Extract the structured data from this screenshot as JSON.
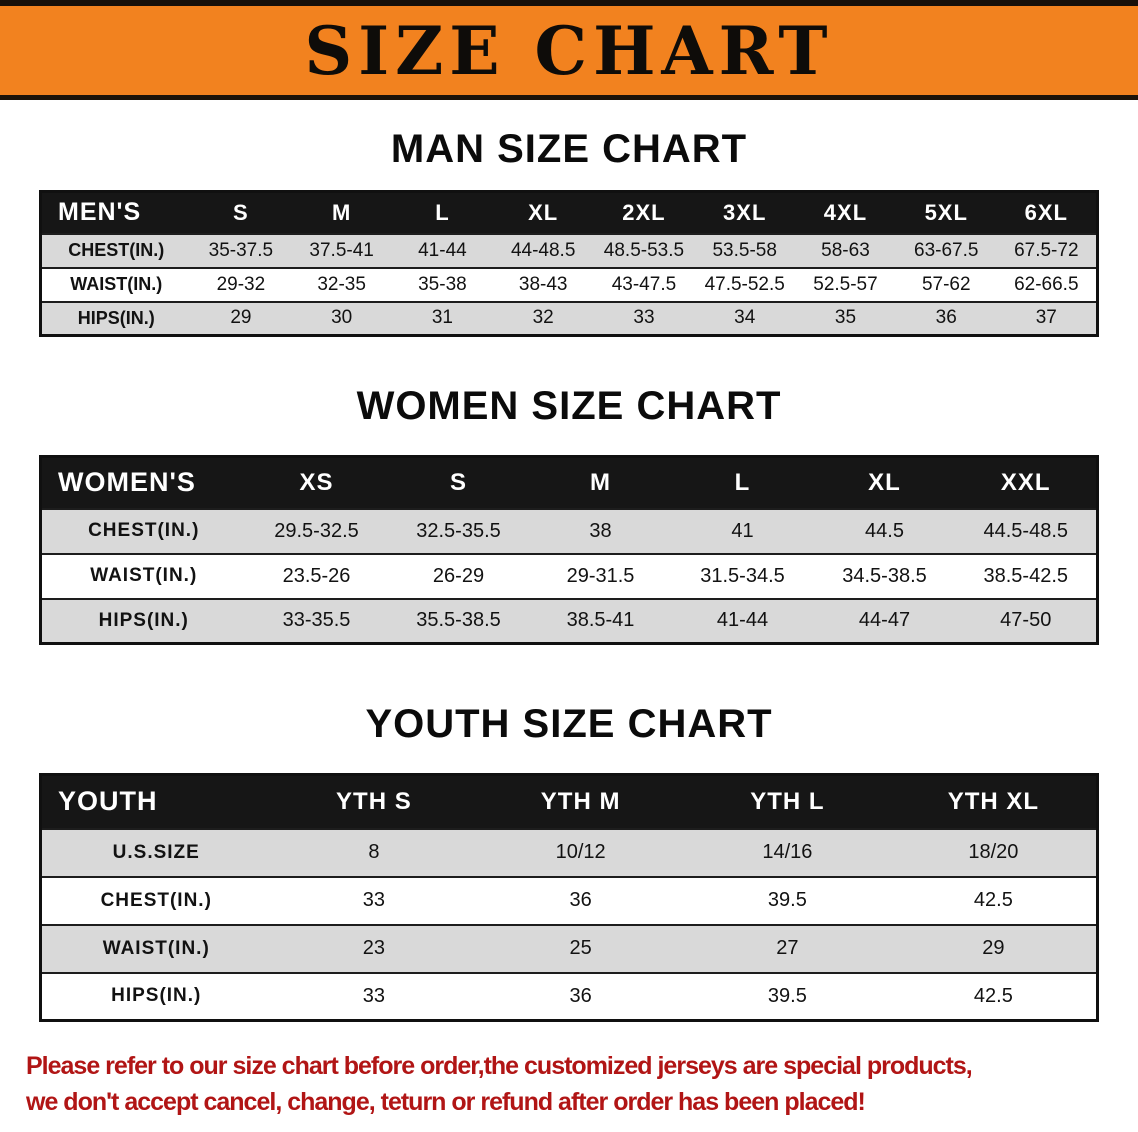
{
  "banner": {
    "title": "SIZE CHART"
  },
  "sections": [
    {
      "id": "men",
      "heading": "MAN SIZE CHART",
      "table": {
        "header": [
          "MEN'S",
          "S",
          "M",
          "L",
          "XL",
          "2XL",
          "3XL",
          "4XL",
          "5XL",
          "6XL"
        ],
        "rows": [
          [
            "CHEST(IN.)",
            "35-37.5",
            "37.5-41",
            "41-44",
            "44-48.5",
            "48.5-53.5",
            "53.5-58",
            "58-63",
            "63-67.5",
            "67.5-72"
          ],
          [
            "WAIST(IN.)",
            "29-32",
            "32-35",
            "35-38",
            "38-43",
            "43-47.5",
            "47.5-52.5",
            "52.5-57",
            "57-62",
            "62-66.5"
          ],
          [
            "HIPS(IN.)",
            "29",
            "30",
            "31",
            "32",
            "33",
            "34",
            "35",
            "36",
            "37"
          ]
        ]
      }
    },
    {
      "id": "women",
      "heading": "WOMEN SIZE CHART",
      "table": {
        "header": [
          "WOMEN'S",
          "XS",
          "S",
          "M",
          "L",
          "XL",
          "XXL"
        ],
        "rows": [
          [
            "CHEST(IN.)",
            "29.5-32.5",
            "32.5-35.5",
            "38",
            "41",
            "44.5",
            "44.5-48.5"
          ],
          [
            "WAIST(IN.)",
            "23.5-26",
            "26-29",
            "29-31.5",
            "31.5-34.5",
            "34.5-38.5",
            "38.5-42.5"
          ],
          [
            "HIPS(IN.)",
            "33-35.5",
            "35.5-38.5",
            "38.5-41",
            "41-44",
            "44-47",
            "47-50"
          ]
        ]
      }
    },
    {
      "id": "youth",
      "heading": "YOUTH SIZE CHART",
      "table": {
        "header": [
          "YOUTH",
          "YTH S",
          "YTH M",
          "YTH L",
          "YTH XL"
        ],
        "rows": [
          [
            "U.S.SIZE",
            "8",
            "10/12",
            "14/16",
            "18/20"
          ],
          [
            "CHEST(IN.)",
            "33",
            "36",
            "39.5",
            "42.5"
          ],
          [
            "WAIST(IN.)",
            "23",
            "25",
            "27",
            "29"
          ],
          [
            "HIPS(IN.)",
            "33",
            "36",
            "39.5",
            "42.5"
          ]
        ]
      }
    }
  ],
  "footer": {
    "lines": [
      "Please refer to our size chart before order,the customized jerseys are special products,",
      "we don't accept cancel, change, teturn or refund after order has been placed!"
    ]
  },
  "colors": {
    "banner_bg": "#f2821f",
    "title_text": "#0e0c09",
    "table_header_bg": "#161616",
    "table_header_text": "#ffffff",
    "row_stripe": "#d9d9d9",
    "footer_text": "#b11515"
  }
}
